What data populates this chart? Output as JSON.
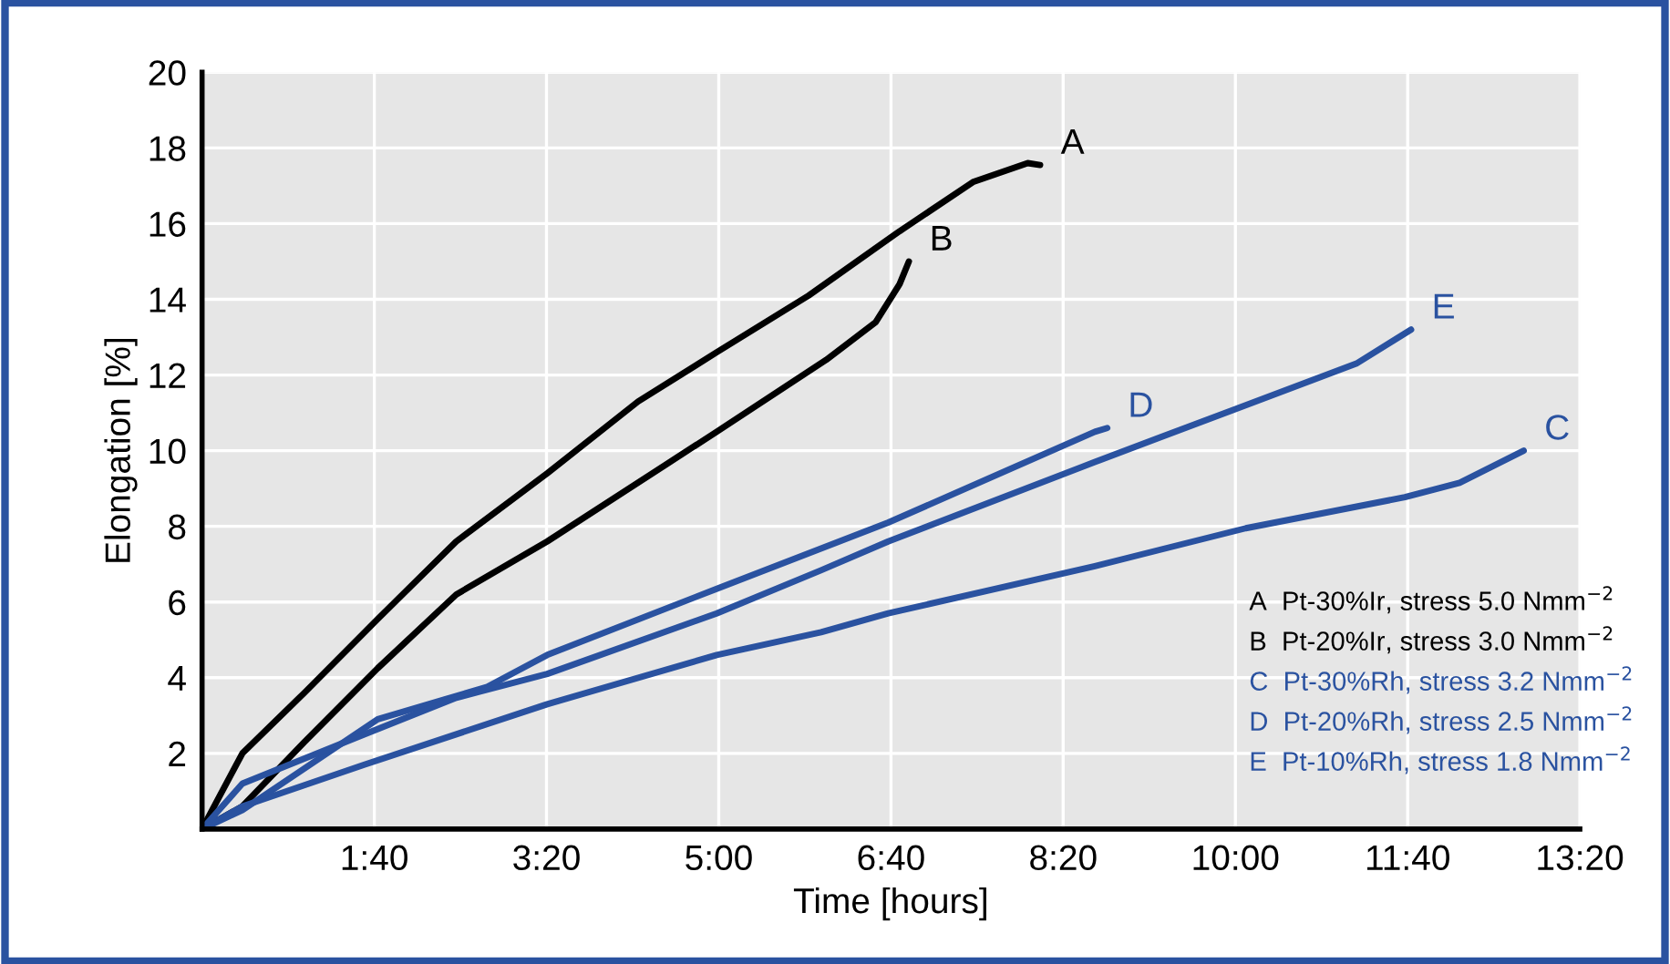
{
  "chart_data": {
    "type": "line",
    "xlabel": "Time [hours]",
    "ylabel": "Elongation [%]",
    "xlim": [
      0,
      13.333
    ],
    "ylim": [
      0,
      20
    ],
    "xticks": [
      {
        "value": 1.667,
        "label": "1:40"
      },
      {
        "value": 3.333,
        "label": "3:20"
      },
      {
        "value": 5,
        "label": "5:00"
      },
      {
        "value": 6.667,
        "label": "6:40"
      },
      {
        "value": 8.333,
        "label": "8:20"
      },
      {
        "value": 10,
        "label": "10:00"
      },
      {
        "value": 11.667,
        "label": "11:40"
      },
      {
        "value": 13.333,
        "label": "13:20"
      }
    ],
    "yticks": [
      2,
      4,
      6,
      8,
      10,
      12,
      14,
      16,
      18,
      20
    ],
    "grid": true,
    "marker": "none",
    "line_style": "solid",
    "series": [
      {
        "name": "A",
        "color": "#000000",
        "x": [
          0,
          0.39,
          0.99,
          1.7,
          2.46,
          3.34,
          4.22,
          4.98,
          5.87,
          6.75,
          7.46,
          7.99,
          8.11
        ],
        "values": [
          0,
          2.0,
          3.6,
          5.55,
          7.6,
          9.4,
          11.3,
          12.6,
          14.1,
          15.8,
          17.1,
          17.6,
          17.55
        ]
      },
      {
        "name": "B",
        "color": "#000000",
        "x": [
          0,
          0.39,
          0.99,
          1.7,
          2.46,
          3.34,
          4.98,
          6.04,
          6.52,
          6.75,
          6.84
        ],
        "values": [
          0,
          0.6,
          2.3,
          4.25,
          6.2,
          7.6,
          10.5,
          12.4,
          13.4,
          14.4,
          15.0
        ]
      },
      {
        "name": "C",
        "color": "#2a52a0",
        "x": [
          0,
          0.39,
          1.57,
          3.34,
          4.98,
          5.99,
          6.64,
          8.64,
          10.1,
          11.64,
          12.17,
          12.79
        ],
        "values": [
          0,
          0.6,
          1.7,
          3.3,
          4.6,
          5.2,
          5.7,
          6.95,
          7.95,
          8.77,
          9.15,
          10.0
        ]
      },
      {
        "name": "D",
        "color": "#2a52a0",
        "x": [
          0,
          0.39,
          1.7,
          2.76,
          3.34,
          4.98,
          6.64,
          8.64,
          8.76
        ],
        "values": [
          0,
          0.5,
          2.9,
          3.76,
          4.6,
          6.35,
          8.1,
          10.5,
          10.6
        ]
      },
      {
        "name": "E",
        "color": "#2a52a0",
        "x": [
          0,
          0.39,
          1.57,
          2.46,
          3.34,
          4.98,
          5.99,
          6.64,
          8.64,
          10.0,
          11.17,
          11.7
        ],
        "values": [
          0,
          1.2,
          2.5,
          3.47,
          4.1,
          5.7,
          6.84,
          7.6,
          9.7,
          11.1,
          12.3,
          13.2
        ]
      }
    ],
    "annotations": [
      "A  Pt-30%Ir, stress 5.0 Nmm$^{−2}$",
      "B  Pt-20%Ir, stress 3.0 Nmm$^{−2}$",
      "C  Pt-30%Rh, stress 3.2 Nmm$^{−2}$",
      "D  Pt-20%Rh, stress 2.5 Nmm$^{−2}$",
      "E  Pt-10%Rh, stress 1.8 Nmm$^{−2}$"
    ]
  }
}
